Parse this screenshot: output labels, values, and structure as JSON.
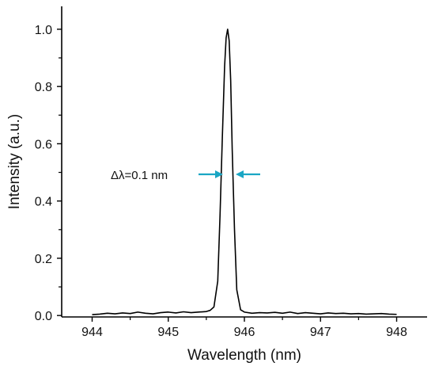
{
  "chart_data": {
    "type": "line",
    "title": "",
    "xlabel": "Wavelength (nm)",
    "ylabel": "Intensity (a.u.)",
    "xlim": [
      943.6,
      948.4
    ],
    "ylim": [
      -0.005,
      1.08
    ],
    "grid": false,
    "legend": "none",
    "x_ticks": [
      944,
      945,
      946,
      947,
      948
    ],
    "x_tick_labels": [
      "944",
      "945",
      "946",
      "947",
      "948"
    ],
    "y_ticks": [
      0.0,
      0.2,
      0.4,
      0.6,
      0.8,
      1.0
    ],
    "y_tick_labels": [
      "0.0",
      "0.2",
      "0.4",
      "0.6",
      "0.8",
      "1.0"
    ],
    "series": [
      {
        "color": "#000000",
        "x": [
          944.0,
          944.1,
          944.2,
          944.3,
          944.4,
          944.5,
          944.6,
          944.7,
          944.8,
          944.9,
          945.0,
          945.1,
          945.2,
          945.3,
          945.4,
          945.5,
          945.55,
          945.6,
          945.65,
          945.68,
          945.71,
          945.74,
          945.76,
          945.78,
          945.8,
          945.82,
          945.84,
          945.87,
          945.9,
          945.95,
          946.0,
          946.1,
          946.2,
          946.3,
          946.4,
          946.5,
          946.6,
          946.7,
          946.8,
          946.9,
          947.0,
          947.1,
          947.2,
          947.3,
          947.4,
          947.5,
          947.6,
          947.7,
          947.8,
          947.9,
          948.0
        ],
        "y": [
          0.003,
          0.005,
          0.008,
          0.006,
          0.009,
          0.007,
          0.012,
          0.008,
          0.006,
          0.01,
          0.012,
          0.009,
          0.013,
          0.01,
          0.012,
          0.014,
          0.018,
          0.03,
          0.12,
          0.35,
          0.62,
          0.87,
          0.97,
          1.0,
          0.96,
          0.82,
          0.58,
          0.3,
          0.09,
          0.02,
          0.012,
          0.008,
          0.01,
          0.009,
          0.011,
          0.008,
          0.012,
          0.007,
          0.01,
          0.008,
          0.006,
          0.009,
          0.007,
          0.008,
          0.006,
          0.007,
          0.005,
          0.006,
          0.007,
          0.005,
          0.004
        ]
      }
    ],
    "annotations": [
      {
        "text": "Δλ=0.1 nm",
        "arrow_color": "#1aa6c4"
      }
    ]
  }
}
